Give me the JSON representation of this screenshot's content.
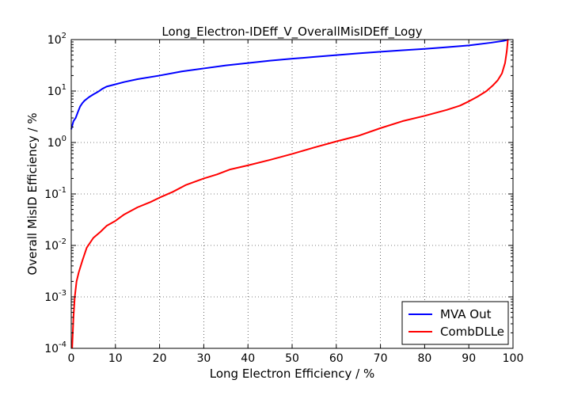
{
  "chart_data": {
    "type": "line",
    "title": "Long_Electron-IDEff_V_OverallMisIDEff_Logy",
    "xlabel": "Long Electron Efficiency / %",
    "ylabel": "Overall MisID Efficiency / %",
    "xlim": [
      0,
      100
    ],
    "ylim": [
      0.0001,
      100
    ],
    "yscale": "log",
    "grid": true,
    "legend_position": "lower-right",
    "x_ticks": [
      "0",
      "10",
      "20",
      "30",
      "40",
      "50",
      "60",
      "70",
      "80",
      "90",
      "100"
    ],
    "y_ticks": [
      {
        "base": "10",
        "exp": "-4",
        "value": 0.0001
      },
      {
        "base": "10",
        "exp": "-3",
        "value": 0.001
      },
      {
        "base": "10",
        "exp": "-2",
        "value": 0.01
      },
      {
        "base": "10",
        "exp": "-1",
        "value": 0.1
      },
      {
        "base": "10",
        "exp": "0",
        "value": 1
      },
      {
        "base": "10",
        "exp": "1",
        "value": 10
      },
      {
        "base": "10",
        "exp": "2",
        "value": 100
      }
    ],
    "series": [
      {
        "name": "MVA Out",
        "color": "#0000ff",
        "points": [
          [
            0,
            1.8
          ],
          [
            0.5,
            2.6
          ],
          [
            1,
            3.0
          ],
          [
            1.5,
            3.9
          ],
          [
            2,
            5.0
          ],
          [
            2.5,
            5.8
          ],
          [
            3,
            6.5
          ],
          [
            4,
            7.6
          ],
          [
            5,
            8.6
          ],
          [
            6,
            9.6
          ],
          [
            7,
            11.0
          ],
          [
            8,
            12.2
          ],
          [
            10,
            13.5
          ],
          [
            12,
            15.0
          ],
          [
            15,
            17.0
          ],
          [
            20,
            20.0
          ],
          [
            25,
            24.0
          ],
          [
            30,
            27.5
          ],
          [
            35,
            31.5
          ],
          [
            40,
            35.0
          ],
          [
            45,
            39.0
          ],
          [
            50,
            42.5
          ],
          [
            55,
            46.0
          ],
          [
            60,
            50.0
          ],
          [
            65,
            54.0
          ],
          [
            70,
            58.0
          ],
          [
            75,
            62.0
          ],
          [
            80,
            66.0
          ],
          [
            85,
            71.0
          ],
          [
            90,
            77.0
          ],
          [
            95,
            87.0
          ],
          [
            98,
            95.0
          ],
          [
            99,
            100
          ]
        ]
      },
      {
        "name": "CombDLLe",
        "color": "#ff0000",
        "points": [
          [
            0.2,
            0.0001
          ],
          [
            0.5,
            0.0004
          ],
          [
            0.8,
            0.001
          ],
          [
            1.2,
            0.002
          ],
          [
            1.7,
            0.003
          ],
          [
            2.5,
            0.005
          ],
          [
            3.5,
            0.009
          ],
          [
            5,
            0.014
          ],
          [
            6.5,
            0.018
          ],
          [
            8,
            0.024
          ],
          [
            10,
            0.03
          ],
          [
            12,
            0.04
          ],
          [
            15,
            0.055
          ],
          [
            18,
            0.07
          ],
          [
            20,
            0.085
          ],
          [
            23,
            0.11
          ],
          [
            26,
            0.15
          ],
          [
            30,
            0.2
          ],
          [
            33,
            0.24
          ],
          [
            36,
            0.3
          ],
          [
            40,
            0.36
          ],
          [
            45,
            0.46
          ],
          [
            50,
            0.6
          ],
          [
            55,
            0.8
          ],
          [
            60,
            1.05
          ],
          [
            65,
            1.35
          ],
          [
            70,
            1.9
          ],
          [
            75,
            2.6
          ],
          [
            80,
            3.3
          ],
          [
            85,
            4.3
          ],
          [
            88,
            5.2
          ],
          [
            90,
            6.3
          ],
          [
            92,
            7.8
          ],
          [
            94,
            10.0
          ],
          [
            95.5,
            13.0
          ],
          [
            96.5,
            16.0
          ],
          [
            97.5,
            22.0
          ],
          [
            98.2,
            35.0
          ],
          [
            98.6,
            60.0
          ],
          [
            98.8,
            90.0
          ],
          [
            98.8,
            100
          ]
        ]
      }
    ]
  }
}
